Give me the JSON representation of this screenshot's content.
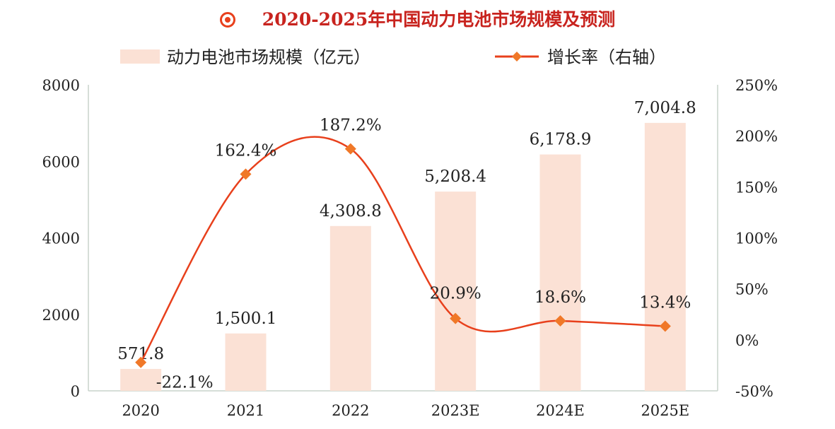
{
  "chart_data": {
    "type": "bar+line",
    "title": "2020-2025年中国动力电池市场规模及预测",
    "categories": [
      "2020",
      "2021",
      "2022",
      "2023E",
      "2024E",
      "2025E"
    ],
    "series": [
      {
        "name": "动力电池市场规模（亿元）",
        "type": "bar",
        "axis": "left",
        "values": [
          571.8,
          1500.1,
          4308.8,
          5208.4,
          6178.9,
          7004.8
        ],
        "labels": [
          "571.8",
          "1,500.1",
          "4,308.8",
          "5,208.4",
          "6,178.9",
          "7,004.8"
        ],
        "color": "#FBE1D5"
      },
      {
        "name": "增长率（右轴）",
        "type": "line",
        "axis": "right",
        "values": [
          -22.1,
          162.4,
          187.2,
          20.9,
          18.6,
          13.4
        ],
        "labels": [
          "-22.1%",
          "162.4%",
          "187.2%",
          "20.9%",
          "18.6%",
          "13.4%"
        ],
        "color": "#E8401C",
        "marker_color": "#F07828"
      }
    ],
    "left_axis": {
      "ylim": [
        0,
        8000
      ],
      "ticks": [
        "0",
        "2000",
        "4000",
        "6000",
        "8000"
      ]
    },
    "right_axis": {
      "ylim": [
        -50,
        250
      ],
      "ticks": [
        "-50%",
        "0%",
        "50%",
        "100%",
        "150%",
        "200%",
        "250%"
      ]
    },
    "legend": "top-center",
    "grid": false
  }
}
